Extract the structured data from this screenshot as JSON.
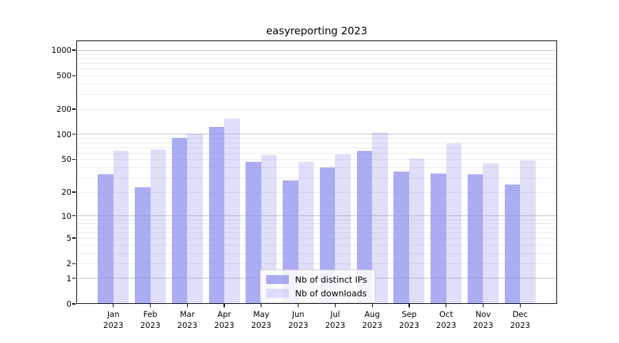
{
  "chart_data": {
    "type": "bar",
    "title": "easyreporting 2023",
    "categories": [
      "Jan",
      "Feb",
      "Mar",
      "Apr",
      "May",
      "Jun",
      "Jul",
      "Aug",
      "Sep",
      "Oct",
      "Nov",
      "Dec"
    ],
    "xtick_year": "2023",
    "series": [
      {
        "name": "Nb of distinct IPs",
        "color": "rgba(140,140,238,0.72)",
        "values": [
          33,
          23,
          90,
          123,
          47,
          28,
          40,
          63,
          36,
          34,
          33,
          25
        ]
      },
      {
        "name": "Nb of downloads",
        "color": "rgba(140,140,238,0.28)",
        "values": [
          63,
          66,
          102,
          155,
          57,
          47,
          58,
          105,
          51,
          78,
          45,
          49
        ]
      }
    ],
    "yscale": "log10(value+1)",
    "ylim": [
      0,
      1300
    ],
    "yticks": [
      1000,
      500,
      200,
      100,
      50,
      20,
      10,
      5,
      2,
      1,
      0
    ],
    "major_grid_values": [
      1,
      10,
      100,
      1000
    ],
    "grid": true,
    "legend_position": "lower center"
  },
  "colors": {
    "bar_base": "#8c8cee",
    "major_grid": "#c3c3c3",
    "minor_grid": "#eaeaea",
    "spine": "#000000"
  }
}
